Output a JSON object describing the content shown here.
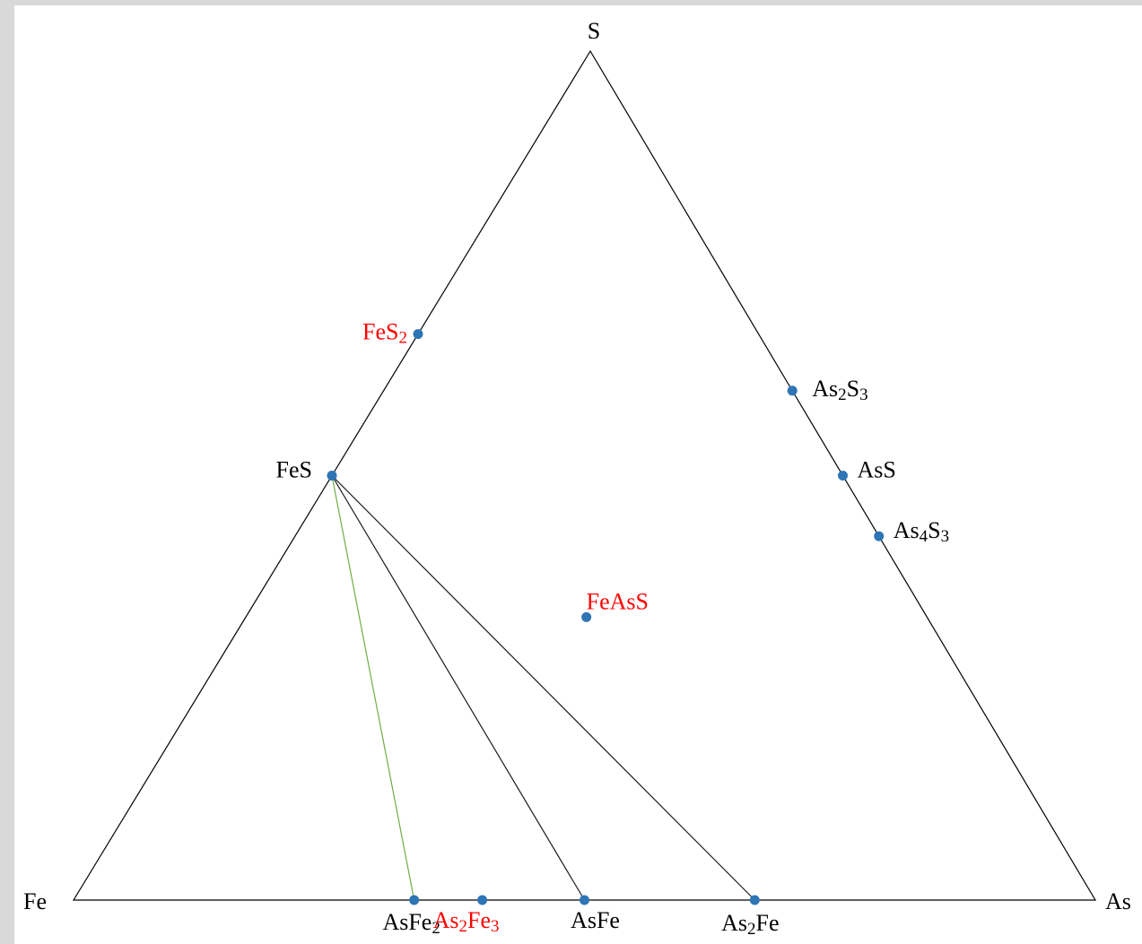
{
  "vertices": {
    "top": "S",
    "left": "Fe",
    "right": "As"
  },
  "colors": {
    "triangle": "#000000",
    "tieline": "#1a1a1a",
    "highlight_tieline": "#70ad47",
    "point": "#2e75b6",
    "label_normal": "#000000",
    "label_highlight": "#ff0000"
  },
  "compounds": [
    {
      "id": "fes2",
      "parts": [
        {
          "t": "FeS"
        },
        {
          "t": "2",
          "sub": true
        }
      ],
      "highlight": true,
      "fe": 1,
      "as": 0,
      "s": 2
    },
    {
      "id": "fes",
      "parts": [
        {
          "t": "FeS"
        }
      ],
      "highlight": false,
      "fe": 1,
      "as": 0,
      "s": 1
    },
    {
      "id": "as2s3",
      "parts": [
        {
          "t": "As"
        },
        {
          "t": "2",
          "sub": true
        },
        {
          "t": "S"
        },
        {
          "t": "3",
          "sub": true
        }
      ],
      "highlight": false,
      "fe": 0,
      "as": 2,
      "s": 3
    },
    {
      "id": "ass",
      "parts": [
        {
          "t": "AsS"
        }
      ],
      "highlight": false,
      "fe": 0,
      "as": 1,
      "s": 1
    },
    {
      "id": "as4s3",
      "parts": [
        {
          "t": "As"
        },
        {
          "t": "4",
          "sub": true
        },
        {
          "t": "S"
        },
        {
          "t": "3",
          "sub": true
        }
      ],
      "highlight": false,
      "fe": 0,
      "as": 4,
      "s": 3
    },
    {
      "id": "feass",
      "parts": [
        {
          "t": "FeAsS"
        }
      ],
      "highlight": true,
      "fe": 1,
      "as": 1,
      "s": 1
    },
    {
      "id": "asfe2",
      "parts": [
        {
          "t": "AsFe"
        },
        {
          "t": "2",
          "sub": true
        }
      ],
      "highlight": false,
      "fe": 2,
      "as": 1,
      "s": 0
    },
    {
      "id": "as2fe3",
      "parts": [
        {
          "t": "As"
        },
        {
          "t": "2",
          "sub": true
        },
        {
          "t": "Fe"
        },
        {
          "t": "3",
          "sub": true
        }
      ],
      "highlight": true,
      "fe": 3,
      "as": 2,
      "s": 0
    },
    {
      "id": "asfe",
      "parts": [
        {
          "t": "AsFe"
        }
      ],
      "highlight": false,
      "fe": 1,
      "as": 1,
      "s": 0
    },
    {
      "id": "as2fe",
      "parts": [
        {
          "t": "As"
        },
        {
          "t": "2",
          "sub": true
        },
        {
          "t": "Fe"
        }
      ],
      "highlight": false,
      "fe": 1,
      "as": 2,
      "s": 0
    }
  ],
  "tielines": [
    {
      "from": "fes",
      "to": "asfe2",
      "style": "highlight"
    },
    {
      "from": "fes",
      "to": "asfe",
      "style": "normal"
    },
    {
      "from": "fes",
      "to": "as2fe",
      "style": "normal"
    }
  ]
}
